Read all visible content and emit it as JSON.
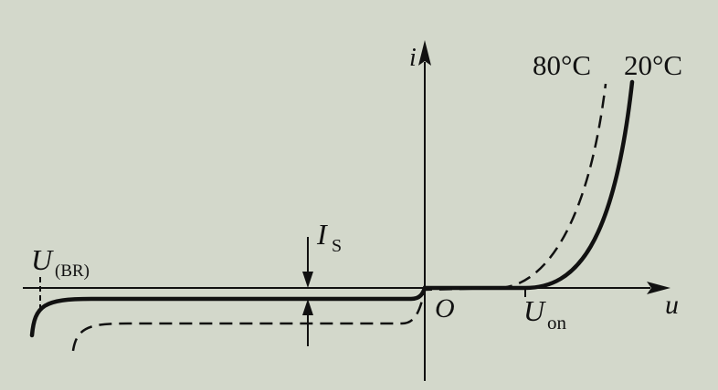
{
  "figure": {
    "type": "diode-iv-characteristic",
    "axes": {
      "current_label": "i",
      "voltage_label": "u",
      "origin_label": "O"
    },
    "curves": [
      {
        "temperature_label": "80°C",
        "line_style": "dashed"
      },
      {
        "temperature_label": "20°C",
        "line_style": "solid"
      }
    ],
    "annotations": {
      "saturation_current": {
        "symbol": "I",
        "subscript": "S"
      },
      "breakdown_voltage": {
        "symbol": "U",
        "subscript": "(BR)"
      },
      "turn_on_voltage": {
        "symbol": "U",
        "subscript": "on"
      }
    }
  },
  "colors": {
    "background": "#d3d8cb",
    "ink": "#111111"
  }
}
